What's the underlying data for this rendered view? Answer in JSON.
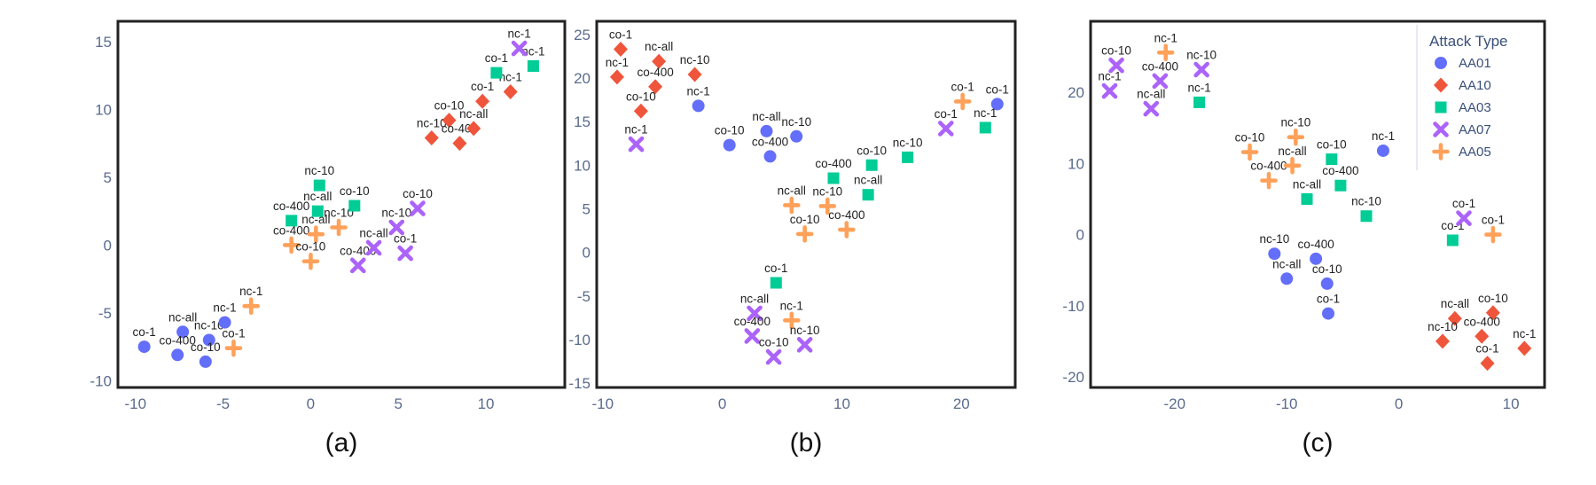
{
  "legend": {
    "title": "Attack Type",
    "entries": [
      {
        "key": "AA01",
        "label": "AA01",
        "color": "#636efa",
        "symbol": "circle"
      },
      {
        "key": "AA10",
        "label": "AA10",
        "color": "#ef553b",
        "symbol": "diamond"
      },
      {
        "key": "AA03",
        "label": "AA03",
        "color": "#00cc96",
        "symbol": "square"
      },
      {
        "key": "AA07",
        "label": "AA07",
        "color": "#ab63fa",
        "symbol": "x"
      },
      {
        "key": "AA05",
        "label": "AA05",
        "color": "#ffa15a",
        "symbol": "cross"
      }
    ]
  },
  "chart_data": [
    {
      "type": "scatter",
      "caption": "(a)",
      "xlim": [
        -11,
        14.5
      ],
      "ylim": [
        -10.5,
        16.5
      ],
      "xticks": [
        -10,
        -5,
        0,
        5,
        10
      ],
      "yticks": [
        -10,
        -5,
        0,
        5,
        10,
        15
      ],
      "points": [
        {
          "s": "AA01",
          "x": -9.5,
          "y": -7.5,
          "label": "co-1"
        },
        {
          "s": "AA01",
          "x": -7.3,
          "y": -6.4,
          "label": "nc-all"
        },
        {
          "s": "AA01",
          "x": -7.6,
          "y": -8.1,
          "label": "co-400"
        },
        {
          "s": "AA01",
          "x": -5.8,
          "y": -7.0,
          "label": "nc-10"
        },
        {
          "s": "AA01",
          "x": -6.0,
          "y": -8.6,
          "label": "co-10"
        },
        {
          "s": "AA01",
          "x": -4.9,
          "y": -5.7,
          "label": "nc-1"
        },
        {
          "s": "AA05",
          "x": -3.4,
          "y": -4.5,
          "label": "nc-1"
        },
        {
          "s": "AA05",
          "x": -4.4,
          "y": -7.6,
          "label": "co-1"
        },
        {
          "s": "AA05",
          "x": -1.1,
          "y": 0.0,
          "label": "co-400"
        },
        {
          "s": "AA05",
          "x": 0.3,
          "y": 0.8,
          "label": "nc-all"
        },
        {
          "s": "AA05",
          "x": 0.0,
          "y": -1.2,
          "label": "co-10"
        },
        {
          "s": "AA05",
          "x": 1.6,
          "y": 1.3,
          "label": "nc-10"
        },
        {
          "s": "AA03",
          "x": -1.1,
          "y": 1.8,
          "label": "co-400"
        },
        {
          "s": "AA03",
          "x": 0.5,
          "y": 4.4,
          "label": "nc-10"
        },
        {
          "s": "AA03",
          "x": 0.4,
          "y": 2.5,
          "label": "nc-all"
        },
        {
          "s": "AA03",
          "x": 2.5,
          "y": 2.9,
          "label": "co-10"
        },
        {
          "s": "AA07",
          "x": 2.7,
          "y": -1.5,
          "label": "co-400"
        },
        {
          "s": "AA07",
          "x": 3.6,
          "y": -0.2,
          "label": "nc-all"
        },
        {
          "s": "AA07",
          "x": 4.9,
          "y": 1.3,
          "label": "nc-10"
        },
        {
          "s": "AA07",
          "x": 6.1,
          "y": 2.7,
          "label": "co-10"
        },
        {
          "s": "AA07",
          "x": 5.4,
          "y": -0.6,
          "label": "co-1"
        },
        {
          "s": "AA10",
          "x": 6.9,
          "y": 7.9,
          "label": "nc-10"
        },
        {
          "s": "AA10",
          "x": 7.9,
          "y": 9.2,
          "label": "co-10"
        },
        {
          "s": "AA10",
          "x": 8.5,
          "y": 7.5,
          "label": "co-400"
        },
        {
          "s": "AA10",
          "x": 9.3,
          "y": 8.6,
          "label": "nc-all"
        },
        {
          "s": "AA10",
          "x": 9.8,
          "y": 10.6,
          "label": "co-1"
        },
        {
          "s": "AA10",
          "x": 11.4,
          "y": 11.3,
          "label": "nc-1"
        },
        {
          "s": "AA03",
          "x": 10.6,
          "y": 12.7,
          "label": "co-1"
        },
        {
          "s": "AA03",
          "x": 12.7,
          "y": 13.2,
          "label": "nc-1"
        },
        {
          "s": "AA07",
          "x": 11.9,
          "y": 14.5,
          "label": "nc-1"
        }
      ]
    },
    {
      "type": "scatter",
      "caption": "(b)",
      "xlim": [
        -10.5,
        24.5
      ],
      "ylim": [
        -15.5,
        26.5
      ],
      "xticks": [
        -10,
        0,
        10,
        20
      ],
      "yticks": [
        -15,
        -10,
        -5,
        0,
        5,
        10,
        15,
        20,
        25
      ],
      "points": [
        {
          "s": "AA10",
          "x": -8.5,
          "y": 23.3,
          "label": "co-1"
        },
        {
          "s": "AA10",
          "x": -8.8,
          "y": 20.1,
          "label": "nc-1"
        },
        {
          "s": "AA10",
          "x": -5.3,
          "y": 21.9,
          "label": "nc-all"
        },
        {
          "s": "AA10",
          "x": -5.6,
          "y": 19.0,
          "label": "co-400"
        },
        {
          "s": "AA10",
          "x": -6.8,
          "y": 16.2,
          "label": "co-10"
        },
        {
          "s": "AA10",
          "x": -2.3,
          "y": 20.4,
          "label": "nc-10"
        },
        {
          "s": "AA07",
          "x": -7.2,
          "y": 12.4,
          "label": "nc-1"
        },
        {
          "s": "AA01",
          "x": -2.0,
          "y": 16.8,
          "label": "nc-1"
        },
        {
          "s": "AA01",
          "x": 0.6,
          "y": 12.3,
          "label": "co-10"
        },
        {
          "s": "AA01",
          "x": 3.7,
          "y": 13.9,
          "label": "nc-all"
        },
        {
          "s": "AA01",
          "x": 4.0,
          "y": 11.0,
          "label": "co-400"
        },
        {
          "s": "AA01",
          "x": 6.2,
          "y": 13.3,
          "label": "nc-10"
        },
        {
          "s": "AA03",
          "x": 9.3,
          "y": 8.5,
          "label": "co-400"
        },
        {
          "s": "AA03",
          "x": 12.5,
          "y": 10.0,
          "label": "co-10"
        },
        {
          "s": "AA03",
          "x": 12.2,
          "y": 6.6,
          "label": "nc-all"
        },
        {
          "s": "AA03",
          "x": 15.5,
          "y": 10.9,
          "label": "nc-10"
        },
        {
          "s": "AA05",
          "x": 5.8,
          "y": 5.4,
          "label": "nc-all"
        },
        {
          "s": "AA05",
          "x": 8.8,
          "y": 5.3,
          "label": "nc-10"
        },
        {
          "s": "AA05",
          "x": 6.9,
          "y": 2.1,
          "label": "co-10"
        },
        {
          "s": "AA05",
          "x": 10.4,
          "y": 2.6,
          "label": "co-400"
        },
        {
          "s": "AA03",
          "x": 4.5,
          "y": -3.5,
          "label": "co-1"
        },
        {
          "s": "AA07",
          "x": 2.7,
          "y": -7.0,
          "label": "nc-all"
        },
        {
          "s": "AA05",
          "x": 5.8,
          "y": -7.8,
          "label": "nc-1"
        },
        {
          "s": "AA07",
          "x": 2.5,
          "y": -9.6,
          "label": "co-400"
        },
        {
          "s": "AA07",
          "x": 6.9,
          "y": -10.6,
          "label": "nc-10"
        },
        {
          "s": "AA07",
          "x": 4.3,
          "y": -12.0,
          "label": "co-10"
        },
        {
          "s": "AA07",
          "x": 18.7,
          "y": 14.2,
          "label": "co-1"
        },
        {
          "s": "AA05",
          "x": 20.1,
          "y": 17.3,
          "label": "co-1"
        },
        {
          "s": "AA01",
          "x": 23.0,
          "y": 17.0,
          "label": "co-1"
        },
        {
          "s": "AA03",
          "x": 22.0,
          "y": 14.3,
          "label": "nc-1"
        }
      ]
    },
    {
      "type": "scatter",
      "caption": "(c)",
      "xlim": [
        -27.5,
        13
      ],
      "ylim": [
        -21.5,
        30
      ],
      "xticks": [
        -20,
        -10,
        0,
        10
      ],
      "yticks": [
        -20,
        -10,
        0,
        10,
        20
      ],
      "points": [
        {
          "s": "AA07",
          "x": -25.2,
          "y": 23.8,
          "label": "co-10"
        },
        {
          "s": "AA07",
          "x": -25.8,
          "y": 20.2,
          "label": "nc-1"
        },
        {
          "s": "AA05",
          "x": -20.8,
          "y": 25.6,
          "label": "nc-1"
        },
        {
          "s": "AA07",
          "x": -21.3,
          "y": 21.6,
          "label": "co-400"
        },
        {
          "s": "AA07",
          "x": -22.1,
          "y": 17.7,
          "label": "nc-all"
        },
        {
          "s": "AA07",
          "x": -17.6,
          "y": 23.2,
          "label": "nc-10"
        },
        {
          "s": "AA03",
          "x": -17.8,
          "y": 18.6,
          "label": "nc-1"
        },
        {
          "s": "AA05",
          "x": -13.3,
          "y": 11.6,
          "label": "co-10"
        },
        {
          "s": "AA05",
          "x": -11.6,
          "y": 7.6,
          "label": "co-400"
        },
        {
          "s": "AA05",
          "x": -9.2,
          "y": 13.7,
          "label": "nc-10"
        },
        {
          "s": "AA05",
          "x": -9.5,
          "y": 9.7,
          "label": "nc-all"
        },
        {
          "s": "AA03",
          "x": -8.2,
          "y": 5.0,
          "label": "nc-all"
        },
        {
          "s": "AA03",
          "x": -6.0,
          "y": 10.6,
          "label": "co-10"
        },
        {
          "s": "AA03",
          "x": -5.2,
          "y": 6.9,
          "label": "co-400"
        },
        {
          "s": "AA03",
          "x": -2.9,
          "y": 2.6,
          "label": "nc-10"
        },
        {
          "s": "AA01",
          "x": -1.4,
          "y": 11.8,
          "label": "nc-1"
        },
        {
          "s": "AA01",
          "x": -11.1,
          "y": -2.7,
          "label": "nc-10"
        },
        {
          "s": "AA01",
          "x": -10.0,
          "y": -6.2,
          "label": "nc-all"
        },
        {
          "s": "AA01",
          "x": -7.4,
          "y": -3.4,
          "label": "co-400"
        },
        {
          "s": "AA01",
          "x": -6.4,
          "y": -6.9,
          "label": "co-10"
        },
        {
          "s": "AA01",
          "x": -6.3,
          "y": -11.1,
          "label": "co-1"
        },
        {
          "s": "AA03",
          "x": 4.8,
          "y": -0.8,
          "label": "co-1"
        },
        {
          "s": "AA07",
          "x": 5.8,
          "y": 2.3,
          "label": "co-1"
        },
        {
          "s": "AA05",
          "x": 8.4,
          "y": 0.0,
          "label": "co-1"
        },
        {
          "s": "AA10",
          "x": 5.0,
          "y": -11.8,
          "label": "nc-all"
        },
        {
          "s": "AA10",
          "x": 8.4,
          "y": -11.0,
          "label": "co-10"
        },
        {
          "s": "AA10",
          "x": 3.9,
          "y": -15.0,
          "label": "nc-10"
        },
        {
          "s": "AA10",
          "x": 7.4,
          "y": -14.3,
          "label": "co-400"
        },
        {
          "s": "AA10",
          "x": 7.9,
          "y": -18.1,
          "label": "co-1"
        },
        {
          "s": "AA10",
          "x": 11.2,
          "y": -16.0,
          "label": "nc-1"
        }
      ]
    }
  ]
}
